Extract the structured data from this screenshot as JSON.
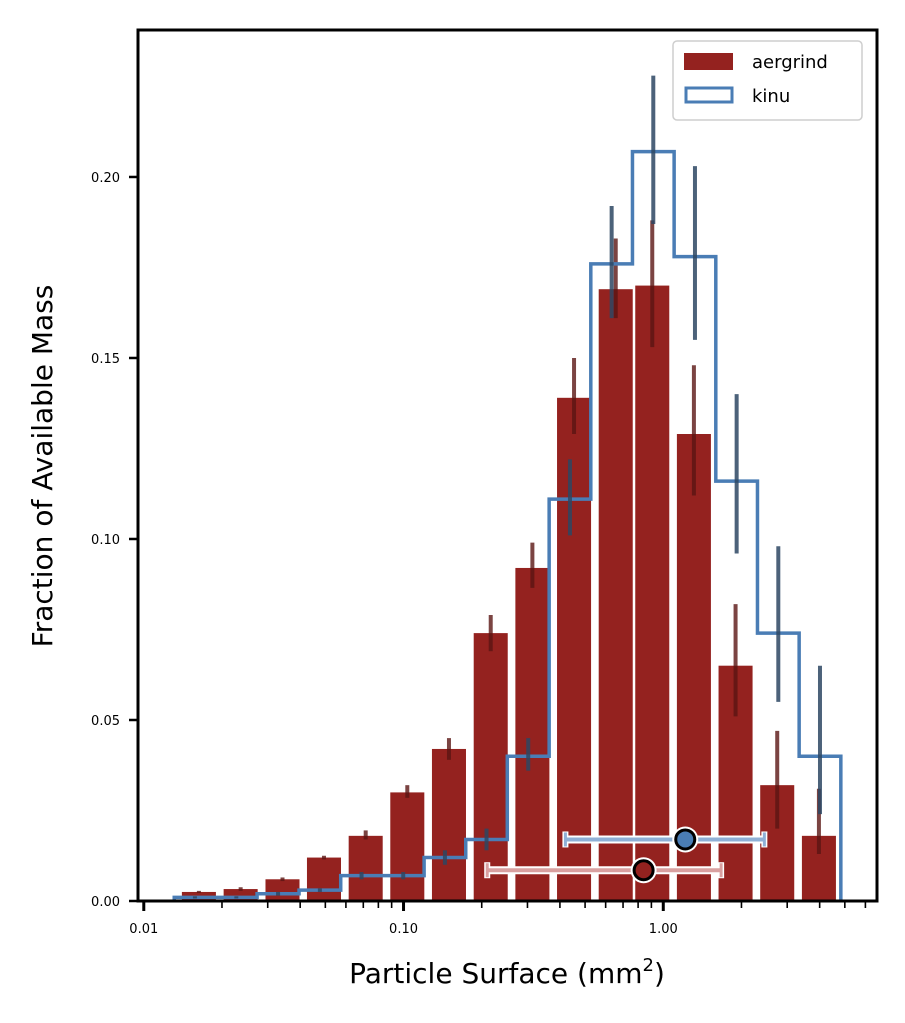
{
  "chart_data": {
    "type": "bar",
    "xscale": "log",
    "xlabel": "Particle Surface (mm",
    "xlabel_sup": "2",
    "xlabel_close": ")",
    "ylabel": "Fraction of Available Mass",
    "xlim": [
      0.0095,
      6.65
    ],
    "ylim": [
      0.0,
      0.2406
    ],
    "xticks": [
      {
        "value": 0.01,
        "label": "0.01"
      },
      {
        "value": 0.1,
        "label": "0.10"
      },
      {
        "value": 1.0,
        "label": "1.00"
      }
    ],
    "yticks": [
      {
        "value": 0.0,
        "label": "0.00"
      },
      {
        "value": 0.05,
        "label": "0.05"
      },
      {
        "value": 0.1,
        "label": "0.10"
      },
      {
        "value": 0.15,
        "label": "0.15"
      },
      {
        "value": 0.2,
        "label": "0.20"
      }
    ],
    "grid": false,
    "legend": {
      "position": "top-right",
      "entries": [
        {
          "label": "aergrind",
          "style": "filled-bar"
        },
        {
          "label": "kinu",
          "style": "step-outline"
        }
      ]
    },
    "colors": {
      "aergrind": "#94221f",
      "aergrind_err": "#5a1513",
      "kinu": "#4a7db5",
      "kinu_err": "#2d4763",
      "aergrind_marker": "#94221f",
      "kinu_marker": "#4a7db5",
      "aergrind_marker_err": "#d9a0a0",
      "kinu_marker_err": "#8fb0d6"
    },
    "series": [
      {
        "name": "aergrind",
        "kind": "bar",
        "x": [
          0.0163,
          0.0236,
          0.0342,
          0.0494,
          0.0715,
          0.1034,
          0.1496,
          0.2166,
          0.3134,
          0.4534,
          0.656,
          0.907,
          1.312,
          1.898,
          2.746,
          3.974
        ],
        "values": [
          0.0025,
          0.0033,
          0.006,
          0.012,
          0.018,
          0.03,
          0.042,
          0.074,
          0.092,
          0.139,
          0.169,
          0.17,
          0.129,
          0.065,
          0.032,
          0.018
        ],
        "err_low": [
          0.0022,
          0.0028,
          0.0055,
          0.0115,
          0.017,
          0.0285,
          0.039,
          0.069,
          0.0865,
          0.129,
          0.161,
          0.153,
          0.112,
          0.051,
          0.02,
          0.013
        ],
        "err_high": [
          0.0028,
          0.0038,
          0.0065,
          0.0125,
          0.0195,
          0.032,
          0.045,
          0.079,
          0.099,
          0.15,
          0.183,
          0.188,
          0.148,
          0.082,
          0.047,
          0.031
        ]
      },
      {
        "name": "kinu",
        "kind": "step",
        "edges": [
          0.0131,
          0.0189,
          0.0273,
          0.0396,
          0.0573,
          0.0829,
          0.12,
          0.1736,
          0.2509,
          0.3636,
          0.526,
          0.761,
          1.101,
          1.593,
          2.305,
          3.335,
          4.826
        ],
        "values": [
          0.001,
          0.001,
          0.002,
          0.003,
          0.007,
          0.007,
          0.012,
          0.017,
          0.04,
          0.111,
          0.176,
          0.207,
          0.178,
          0.116,
          0.074,
          0.04
        ],
        "err_low": [
          0.0007,
          0.0007,
          0.0015,
          0.0025,
          0.006,
          0.006,
          0.01,
          0.014,
          0.036,
          0.101,
          0.161,
          0.187,
          0.155,
          0.096,
          0.055,
          0.024
        ],
        "err_high": [
          0.0013,
          0.0013,
          0.0025,
          0.0035,
          0.008,
          0.008,
          0.014,
          0.02,
          0.045,
          0.122,
          0.192,
          0.228,
          0.203,
          0.14,
          0.098,
          0.065
        ]
      }
    ],
    "summary_markers": [
      {
        "name": "kinu",
        "x": 1.215,
        "y": 0.017,
        "x_low": 0.42,
        "x_high": 2.45
      },
      {
        "name": "aergrind",
        "x": 0.84,
        "y": 0.0085,
        "x_low": 0.21,
        "x_high": 1.67
      }
    ]
  }
}
